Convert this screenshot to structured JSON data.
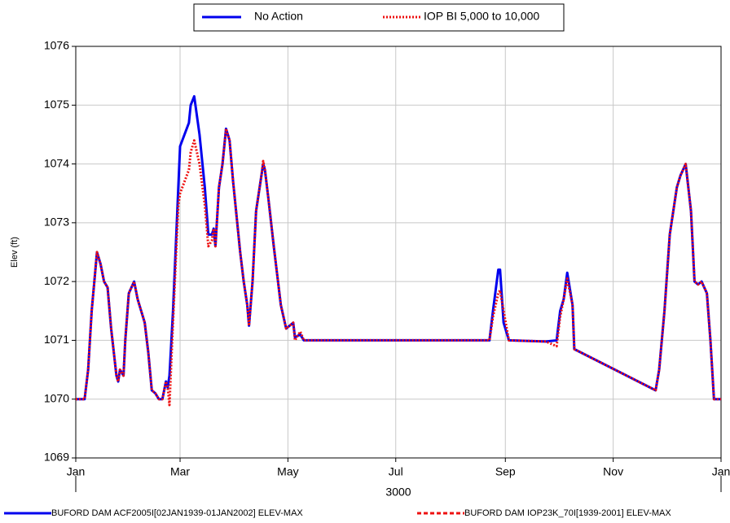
{
  "chart_data": {
    "type": "line",
    "x_label": "3000",
    "y_label": "Elev (ft)",
    "x": [
      0,
      5,
      7,
      9,
      12,
      14,
      16,
      18,
      20,
      23,
      24,
      25,
      27,
      28,
      30,
      33,
      35,
      37,
      39,
      41,
      43,
      45,
      47,
      49,
      51,
      52,
      53,
      55,
      58,
      59,
      64,
      65,
      67,
      70,
      73,
      75,
      77,
      78,
      79,
      81,
      83,
      85,
      87,
      89,
      91,
      93,
      95,
      97,
      98,
      100,
      102,
      105,
      106,
      107,
      109,
      112,
      114,
      116,
      119,
      121,
      123,
      124,
      127,
      129,
      234,
      236,
      239,
      240,
      242,
      245,
      266,
      272,
      274,
      276,
      278,
      281,
      282,
      328,
      330,
      333,
      336,
      340,
      342,
      345,
      348,
      350,
      352,
      354,
      357,
      359,
      361,
      365
    ],
    "series": [
      {
        "name": "No Action",
        "color": "#0000ee",
        "line_style": "solid",
        "description": "BUFORD DAM ACF2005I[02JAN1939-01JAN2002] ELEV-MAX",
        "values": [
          1070,
          1070,
          1070.5,
          1071.5,
          1072.5,
          1072.3,
          1072,
          1071.9,
          1071.2,
          1070.4,
          1070.3,
          1070.5,
          1070.4,
          1071,
          1071.8,
          1072,
          1071.7,
          1071.5,
          1071.3,
          1070.8,
          1070.15,
          1070.1,
          1070,
          1070,
          1070.3,
          1070.2,
          1070.4,
          1071.5,
          1073.6,
          1074.3,
          1074.7,
          1075,
          1075.15,
          1074.5,
          1073.6,
          1072.8,
          1072.8,
          1072.9,
          1072.6,
          1073.6,
          1074,
          1074.6,
          1074.4,
          1073.7,
          1073.1,
          1072.5,
          1072,
          1071.6,
          1071.25,
          1072,
          1073.2,
          1073.8,
          1074,
          1073.9,
          1073.4,
          1072.6,
          1072.1,
          1071.6,
          1071.2,
          1071.25,
          1071.3,
          1071.05,
          1071.1,
          1071,
          1071,
          1071.5,
          1072.2,
          1072.2,
          1071.3,
          1071,
          1070.98,
          1071,
          1071.5,
          1071.7,
          1072.15,
          1071.6,
          1070.85,
          1070.15,
          1070.5,
          1071.5,
          1072.8,
          1073.6,
          1073.8,
          1074,
          1073.2,
          1072,
          1071.95,
          1072,
          1071.8,
          1071,
          1070,
          1070
        ]
      },
      {
        "name": "IOP BI 5,000 to 10,000",
        "color": "#ee1111",
        "line_style": "dotted",
        "description": "BUFORD DAM IOP23K_70I[1939-2001] ELEV-MAX",
        "values": [
          1070,
          1070,
          1070.5,
          1071.5,
          1072.5,
          1072.3,
          1072,
          1071.9,
          1071.2,
          1070.4,
          1070.3,
          1070.5,
          1070.4,
          1071,
          1071.8,
          1072,
          1071.7,
          1071.5,
          1071.3,
          1070.8,
          1070.15,
          1070.1,
          1070,
          1070,
          1070.3,
          1070.2,
          1069.9,
          1071.3,
          1073.3,
          1073.5,
          1073.9,
          1074.2,
          1074.4,
          1074,
          1073.3,
          1072.6,
          1072.7,
          1072.9,
          1072.6,
          1073.6,
          1074,
          1074.6,
          1074.4,
          1073.7,
          1073.1,
          1072.5,
          1072,
          1071.6,
          1071.25,
          1072,
          1073.2,
          1073.8,
          1074.05,
          1073.9,
          1073.4,
          1072.6,
          1072.1,
          1071.6,
          1071.2,
          1071.25,
          1071.3,
          1071,
          1071.15,
          1071,
          1071,
          1071.4,
          1071.8,
          1071.85,
          1071.5,
          1071,
          1070.98,
          1070.9,
          1071.4,
          1071.7,
          1072.05,
          1071.6,
          1070.85,
          1070.15,
          1070.5,
          1071.5,
          1072.8,
          1073.6,
          1073.8,
          1074,
          1073.2,
          1072,
          1071.95,
          1072,
          1071.8,
          1071,
          1070,
          1070
        ]
      }
    ],
    "xlim": [
      0,
      365
    ],
    "xticks": [
      {
        "value": 0,
        "label": "Jan"
      },
      {
        "value": 59,
        "label": "Mar"
      },
      {
        "value": 120,
        "label": "May"
      },
      {
        "value": 181,
        "label": "Jul"
      },
      {
        "value": 243,
        "label": "Sep"
      },
      {
        "value": 304,
        "label": "Nov"
      },
      {
        "value": 365,
        "label": "Jan"
      }
    ],
    "ylim": [
      1069,
      1076
    ],
    "yticks": [
      1069,
      1070,
      1071,
      1072,
      1073,
      1074,
      1075,
      1076
    ],
    "grid": true,
    "legend": "top"
  }
}
